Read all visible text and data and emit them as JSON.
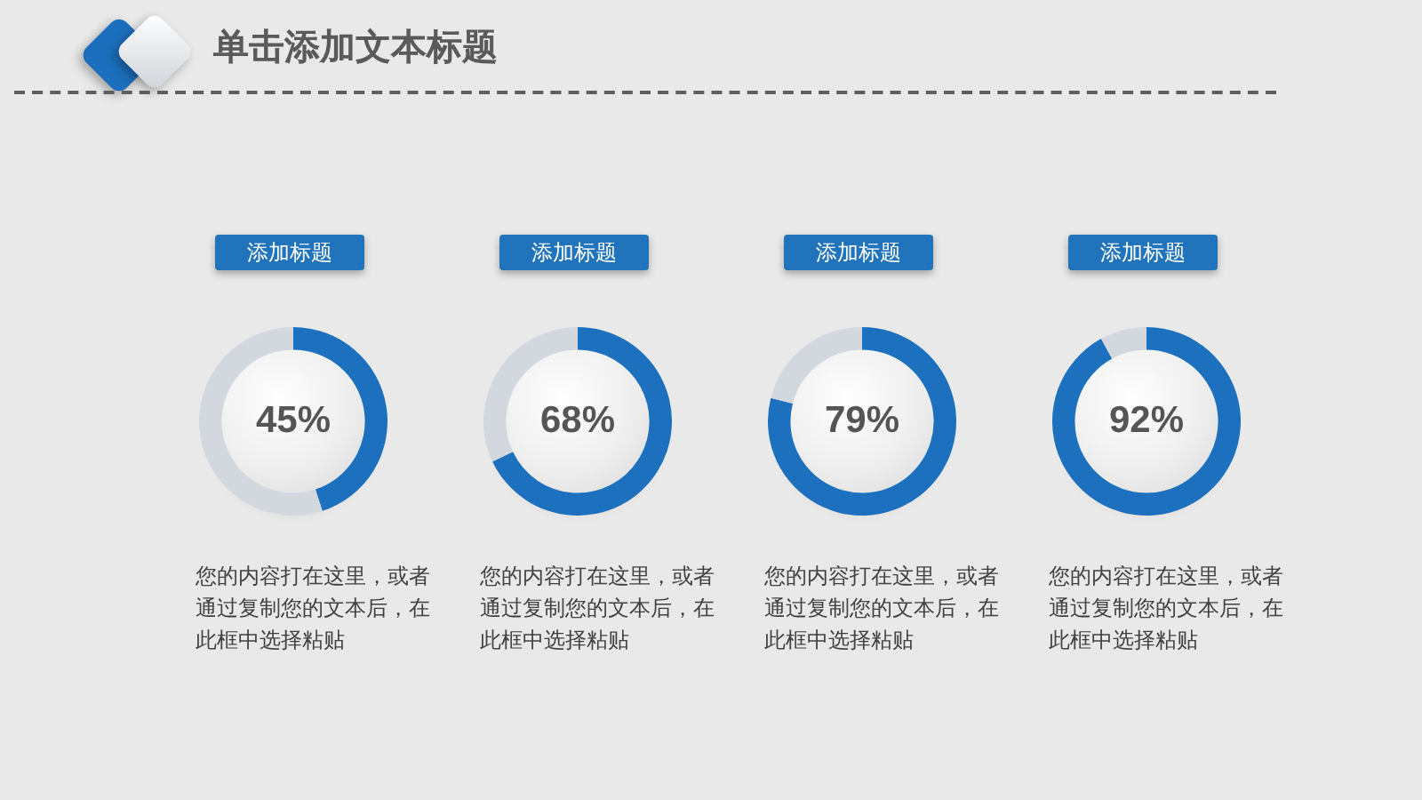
{
  "chart_data": [
    {
      "type": "other",
      "title": "单击添加文本标题"
    },
    {
      "type": "donut",
      "title": "添加标题",
      "categories": [
        null,
        null
      ],
      "values": [
        45,
        55
      ],
      "colors": [
        "#1c70bd",
        "#d3d8de"
      ],
      "value_labels": [
        "45%",
        null
      ],
      "annotations": [
        "您的内容打在这里，或者通过复制您的文本后，在此框中选择粘贴"
      ]
    },
    {
      "type": "donut",
      "title": "添加标题",
      "categories": [
        null,
        null
      ],
      "values": [
        68,
        32
      ],
      "colors": [
        "#1c70bd",
        "#d3d8de"
      ],
      "value_labels": [
        "68%",
        null
      ],
      "annotations": [
        "您的内容打在这里，或者通过复制您的文本后，在此框中选择粘贴"
      ]
    },
    {
      "type": "donut",
      "title": "添加标题",
      "categories": [
        null,
        null
      ],
      "values": [
        79,
        21
      ],
      "colors": [
        "#1c70bd",
        "#d3d8de"
      ],
      "value_labels": [
        "79%",
        null
      ],
      "annotations": [
        "您的内容打在这里，或者通过复制您的文本后，在此框中选择粘贴"
      ]
    },
    {
      "type": "donut",
      "title": "添加标题",
      "categories": [
        null,
        null
      ],
      "values": [
        92,
        8
      ],
      "colors": [
        "#1c70bd",
        "#d3d8de"
      ],
      "value_labels": [
        "92%",
        null
      ],
      "annotations": [
        "您的内容打在这里，或者通过复制您的文本后，在此框中选择粘贴"
      ]
    }
  ]
}
